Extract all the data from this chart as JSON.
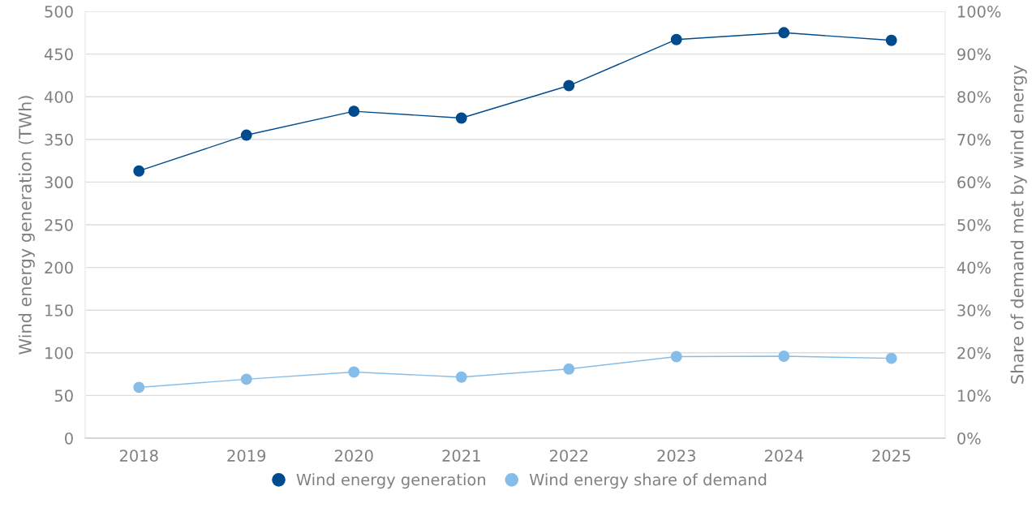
{
  "chart_data": {
    "type": "line",
    "categories": [
      "2018",
      "2019",
      "2020",
      "2021",
      "2022",
      "2023",
      "2024",
      "2025"
    ],
    "ylabel": "Wind energy generation (TWh)",
    "y2label": "Share of demand met by wind energy",
    "series": [
      {
        "name": "Wind energy generation",
        "color": "#004b8d",
        "values": [
          313,
          355,
          383,
          375,
          413,
          467,
          475,
          466
        ]
      },
      {
        "name": "Wind energy share of demand",
        "color": "#85bde8",
        "axis": "y2",
        "values": [
          11.9,
          13.8,
          15.5,
          14.3,
          16.2,
          19.1,
          19.2,
          18.7
        ]
      }
    ],
    "ylim": [
      0,
      500
    ],
    "yticks": [
      0,
      50,
      100,
      150,
      200,
      250,
      300,
      350,
      400,
      450,
      500
    ],
    "y2lim": [
      0,
      100
    ],
    "y2ticks": [
      {
        "value": 0,
        "label": "0%"
      },
      {
        "value": 10,
        "label": "10%"
      },
      {
        "value": 20,
        "label": "20%"
      },
      {
        "value": 30,
        "label": "30%"
      },
      {
        "value": 40,
        "label": "40%"
      },
      {
        "value": 50,
        "label": "50%"
      },
      {
        "value": 60,
        "label": "60%"
      },
      {
        "value": 70,
        "label": "70%"
      },
      {
        "value": 80,
        "label": "80%"
      },
      {
        "value": 90,
        "label": "90%"
      },
      {
        "value": 100,
        "label": "100%"
      }
    ],
    "grid": "y",
    "legend": "bottom",
    "marker": "circle",
    "line_style": "solid"
  }
}
